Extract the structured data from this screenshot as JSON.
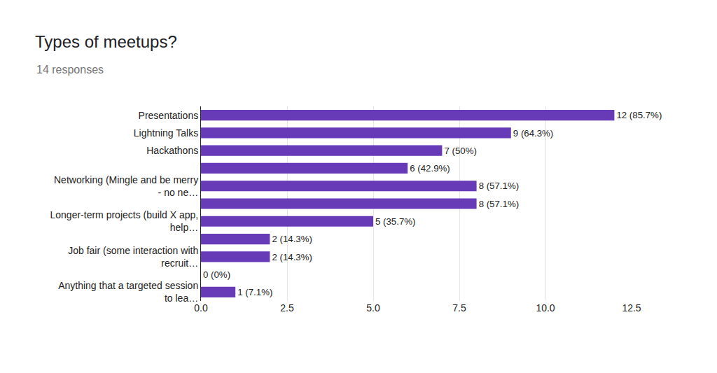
{
  "chart_data": {
    "type": "bar",
    "title": "Types of meetups?",
    "subtitle": "14 responses",
    "orientation": "horizontal",
    "categories": [
      "Presentations",
      "Lightning Talks",
      "Hackathons",
      null,
      "Networking (Mingle and be merry - no ne…",
      null,
      "Longer-term projects (build X app, help…",
      null,
      "Job fair (some interaction with recruit…",
      null,
      "Anything that a targeted session to lea…"
    ],
    "values": [
      12,
      9,
      7,
      6,
      8,
      8,
      5,
      2,
      2,
      0,
      1
    ],
    "value_labels": [
      "12 (85.7%)",
      "9 (64.3%)",
      "7 (50%)",
      "6 (42.9%)",
      "8 (57.1%)",
      "8 (57.1%)",
      "5 (35.7%)",
      "2 (14.3%)",
      "2 (14.3%)",
      "0 (0%)",
      "1 (7.1%)"
    ],
    "color": "#673ab7",
    "xlim": [
      0,
      12.5
    ],
    "xticks": [
      {
        "value": 0,
        "label": "0.0"
      },
      2.5,
      {
        "value": 5,
        "label": "5.0"
      },
      7.5,
      {
        "value": 10,
        "label": "10.0"
      },
      12.5
    ],
    "grid": true,
    "data_labels": true
  }
}
